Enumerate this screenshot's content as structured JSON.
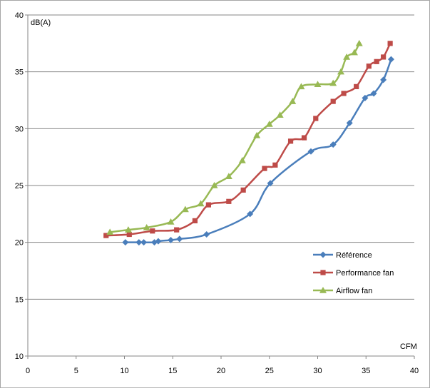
{
  "chart_data": {
    "type": "line",
    "xlabel": "CFM",
    "ylabel": "dB(A)",
    "xlim": [
      0,
      40
    ],
    "ylim": [
      10,
      40
    ],
    "xticks": [
      "0",
      "5",
      "10",
      "15",
      "20",
      "25",
      "30",
      "35",
      "40"
    ],
    "yticks": [
      "10",
      "15",
      "20",
      "25",
      "30",
      "35",
      "40"
    ],
    "grid": "horizontal",
    "legend_position": "right",
    "series": [
      {
        "name": "Référence",
        "color": "#4a7ebb",
        "marker": "diamond",
        "x": [
          10.1,
          11.5,
          12.0,
          13.1,
          13.5,
          14.8,
          15.7,
          18.5,
          23.0,
          25.1,
          29.3,
          31.6,
          33.3,
          34.9,
          35.8,
          36.8,
          37.6
        ],
        "y": [
          20.0,
          20.0,
          20.0,
          20.0,
          20.1,
          20.2,
          20.3,
          20.7,
          22.5,
          25.2,
          28.0,
          28.6,
          30.5,
          32.7,
          33.1,
          34.3,
          36.1
        ]
      },
      {
        "name": "Performance fan",
        "color": "#be4b48",
        "marker": "square",
        "x": [
          8.1,
          10.5,
          12.9,
          15.4,
          17.3,
          18.7,
          20.8,
          22.3,
          24.5,
          25.6,
          27.2,
          28.6,
          29.8,
          31.6,
          32.7,
          34.0,
          35.3,
          36.1,
          36.8,
          37.5
        ],
        "y": [
          20.6,
          20.7,
          21.0,
          21.1,
          21.9,
          23.3,
          23.6,
          24.6,
          26.5,
          26.8,
          28.9,
          29.2,
          30.9,
          32.4,
          33.1,
          33.7,
          35.5,
          35.9,
          36.3,
          37.5
        ]
      },
      {
        "name": "Airflow fan",
        "color": "#98b954",
        "marker": "triangle",
        "x": [
          8.5,
          10.4,
          12.3,
          14.8,
          16.3,
          17.9,
          19.3,
          20.8,
          22.2,
          23.7,
          25.0,
          26.1,
          27.4,
          28.3,
          30.0,
          31.6,
          32.4,
          33.0,
          33.8,
          34.3
        ],
        "y": [
          20.9,
          21.1,
          21.3,
          21.8,
          22.9,
          23.4,
          25.0,
          25.8,
          27.2,
          29.4,
          30.4,
          31.2,
          32.4,
          33.7,
          33.9,
          34.0,
          35.0,
          36.3,
          36.7,
          37.5
        ]
      }
    ]
  }
}
